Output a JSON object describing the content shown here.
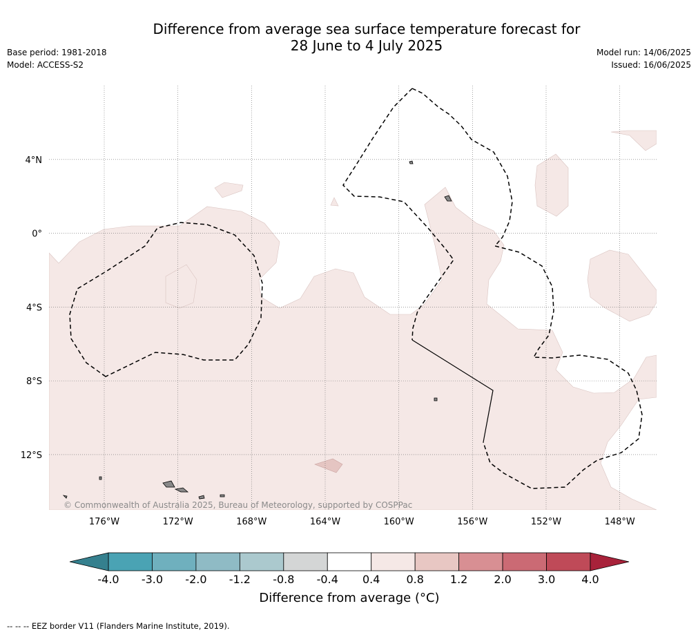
{
  "title": {
    "line1": "Difference from average sea surface temperature forecast for",
    "line2": "28 June to 4 July 2025"
  },
  "meta": {
    "base_period": "Base period: 1981-2018",
    "model": "Model: ACCESS-S2",
    "model_run": "Model run: 14/06/2025",
    "issued": "Issued: 16/06/2025"
  },
  "map": {
    "lon_range": [
      -179,
      -146
    ],
    "lat_range": [
      -15,
      8
    ],
    "lon_ticks": [
      -176,
      -172,
      -168,
      -164,
      -160,
      -156,
      -152,
      -148
    ],
    "lat_ticks": [
      4,
      0,
      -4,
      -8,
      -12
    ],
    "lon_tick_labels": [
      "176°W",
      "172°W",
      "168°W",
      "164°W",
      "160°W",
      "156°W",
      "152°W",
      "148°W"
    ],
    "lat_tick_labels": [
      "4°N",
      "0°",
      "4°S",
      "8°S",
      "12°S"
    ],
    "gridlines": true,
    "dominant_anomaly_band": "0.4 to 0.8",
    "credit": "© Commonwealth of Australia 2025, Bureau of Meteorology, supported by COSPPac"
  },
  "colorbar": {
    "ticks": [
      "-4.0",
      "-3.0",
      "-2.0",
      "-1.2",
      "-0.8",
      "-0.4",
      "0.4",
      "0.8",
      "1.2",
      "2.0",
      "3.0",
      "4.0"
    ],
    "colors": [
      "#4aa3b4",
      "#6fb0be",
      "#8fbbc5",
      "#abc9ce",
      "#d4d6d6",
      "#ffffff",
      "#f5e8e6",
      "#e8c7c3",
      "#d88f93",
      "#cb6a74",
      "#bf4a58"
    ],
    "under_color": "#35808e",
    "over_color": "#a8223a",
    "label": "Difference from average (°C)"
  },
  "footnote": "-- -- -- EEZ border V11 (Flanders Marine Institute, 2019)."
}
